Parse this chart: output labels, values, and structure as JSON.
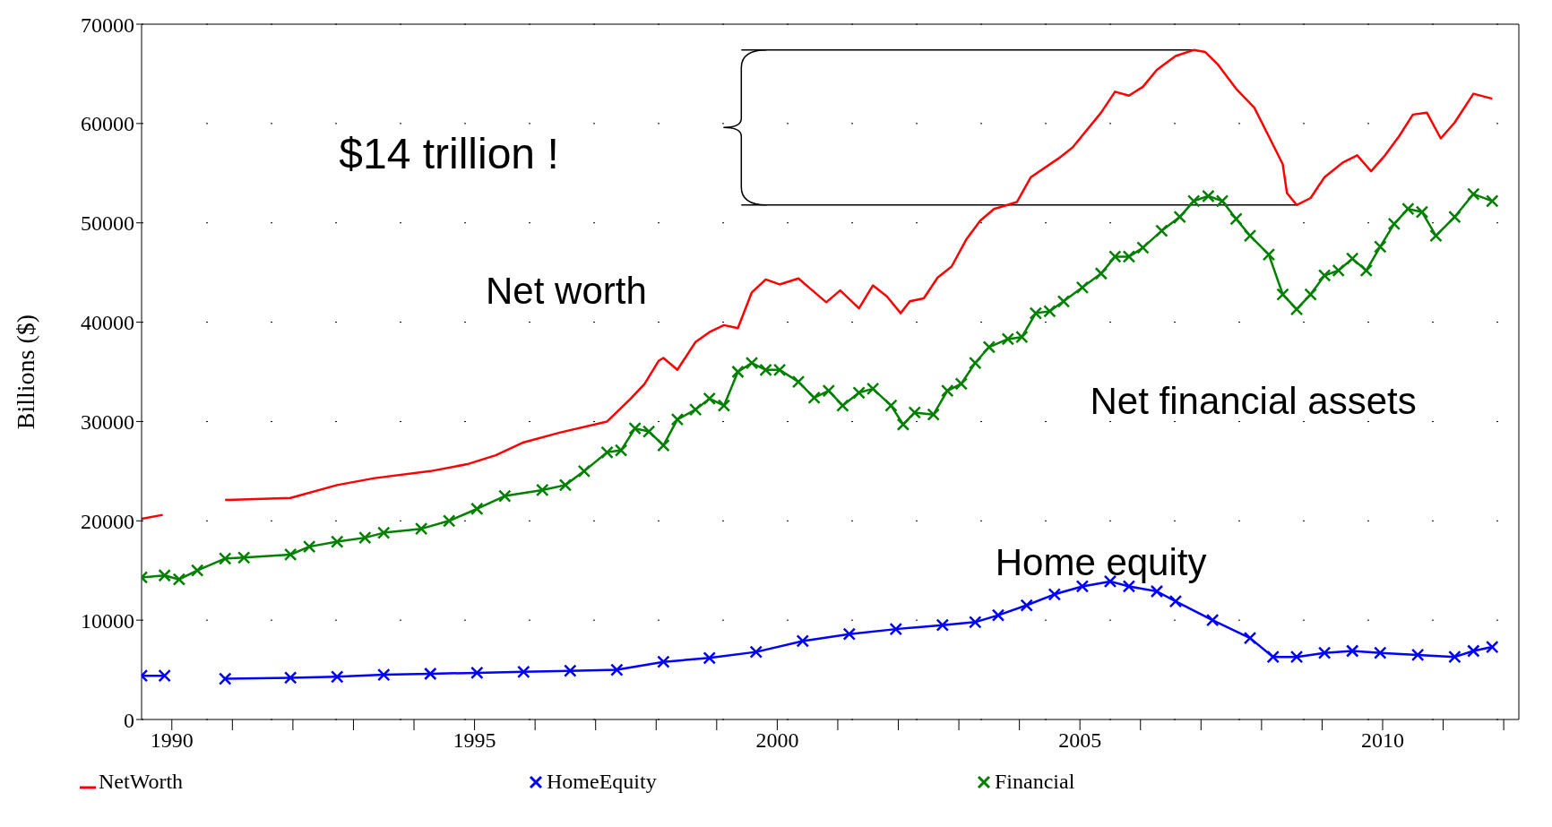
{
  "chart_data": {
    "type": "line",
    "ylabel": "Billions ($)",
    "xlim": [
      1989.5,
      2012.25
    ],
    "xticks": [
      1990,
      {
        "value": 1991,
        "label": null
      },
      {
        "value": 1992,
        "label": null
      },
      {
        "value": 1993,
        "label": null
      },
      {
        "value": 1994,
        "label": null
      },
      1995,
      {
        "value": 1996,
        "label": null
      },
      {
        "value": 1997,
        "label": null
      },
      {
        "value": 1998,
        "label": null
      },
      {
        "value": 1999,
        "label": null
      },
      2000,
      {
        "value": 2001,
        "label": null
      },
      {
        "value": 2002,
        "label": null
      },
      {
        "value": 2003,
        "label": null
      },
      {
        "value": 2004,
        "label": null
      },
      2005,
      {
        "value": 2006,
        "label": null
      },
      {
        "value": 2007,
        "label": null
      },
      {
        "value": 2008,
        "label": null
      },
      {
        "value": 2009,
        "label": null
      },
      2010,
      {
        "value": 2011,
        "label": null
      },
      {
        "value": 2012,
        "label": null
      }
    ],
    "ylim": [
      0,
      70000
    ],
    "yticks": [
      0,
      10000,
      20000,
      30000,
      40000,
      50000,
      60000,
      70000
    ],
    "grid": "y",
    "legend": "bottom",
    "series": [
      {
        "name": "NetWorth",
        "color": "#ff0000",
        "marker": "none",
        "x": [
          1989.5,
          1989.85,
          1990.4,
          1990.88,
          1991.96,
          1992.73,
          1993.35,
          1994.27,
          1994.88,
          1995.35,
          1995.81,
          1996.42,
          1997.19,
          1997.58,
          1997.81,
          1998.04,
          1998.12,
          1998.35,
          1998.65,
          1998.88,
          1999.12,
          1999.35,
          1999.58,
          1999.81,
          2000.04,
          2000.35,
          2000.58,
          2000.81,
          2001.04,
          2001.35,
          2001.58,
          2001.81,
          2002.04,
          2002.19,
          2002.42,
          2002.65,
          2002.88,
          2003.12,
          2003.35,
          2003.58,
          2003.96,
          2004.19,
          2004.65,
          2004.88,
          2005.35,
          2005.58,
          2005.81,
          2006.04,
          2006.27,
          2006.58,
          2006.88,
          2007.07,
          2007.27,
          2007.58,
          2007.88,
          2008.12,
          2008.35,
          2008.42,
          2008.58,
          2008.81,
          2009.04,
          2009.35,
          2009.58,
          2009.81,
          2010.04,
          2010.27,
          2010.5,
          2010.73,
          2010.96,
          2011.19,
          2011.5,
          2011.81
        ],
        "values": [
          20200,
          20600,
          null,
          22100,
          22300,
          23600,
          24300,
          25000,
          25700,
          26600,
          27900,
          28900,
          30000,
          32300,
          33800,
          36100,
          36400,
          35200,
          38000,
          39000,
          39700,
          39400,
          43000,
          44300,
          43800,
          44400,
          43200,
          42000,
          43200,
          41400,
          43700,
          42600,
          40900,
          42100,
          42400,
          44500,
          45600,
          48300,
          50200,
          51400,
          52100,
          54600,
          56500,
          57600,
          61100,
          63200,
          62800,
          63700,
          65400,
          66800,
          67400,
          67200,
          66000,
          63500,
          61600,
          58700,
          55900,
          53000,
          51800,
          52500,
          54600,
          56100,
          56800,
          55200,
          56800,
          58700,
          60900,
          61100,
          58500,
          60100,
          63000,
          62500
        ]
      },
      {
        "name": "HomeEquity",
        "color": "#0000ff",
        "marker": "cross",
        "x": [
          1989.5,
          1989.88,
          1990.4,
          1990.88,
          1991.96,
          1992.73,
          1993.5,
          1994.27,
          1995.04,
          1995.81,
          1996.58,
          1997.35,
          1998.12,
          1998.88,
          1999.65,
          2000.42,
          2001.19,
          2001.96,
          2002.73,
          2003.27,
          2003.65,
          2004.12,
          2004.58,
          2005.04,
          2005.5,
          2005.81,
          2006.27,
          2006.58,
          2007.19,
          2007.81,
          2008.19,
          2008.58,
          2009.04,
          2009.5,
          2009.96,
          2010.58,
          2011.19,
          2011.5,
          2011.81
        ],
        "values": [
          4400,
          4400,
          null,
          4100,
          4200,
          4300,
          4500,
          4600,
          4700,
          4800,
          4900,
          5000,
          5800,
          6200,
          6800,
          7900,
          8600,
          9100,
          9500,
          9800,
          10500,
          11500,
          12600,
          13400,
          13900,
          13400,
          12900,
          11900,
          10000,
          8200,
          6300,
          6300,
          6700,
          6900,
          6700,
          6500,
          6300,
          6900,
          7300
        ]
      },
      {
        "name": "Financial",
        "color": "#008000",
        "marker": "cross",
        "x": [
          1989.5,
          1989.88,
          1990.12,
          1990.42,
          1990.88,
          1991.19,
          1991.96,
          1992.27,
          1992.73,
          1993.19,
          1993.5,
          1994.12,
          1994.58,
          1995.04,
          1995.5,
          1996.12,
          1996.5,
          1996.81,
          1997.19,
          1997.42,
          1997.65,
          1997.88,
          1998.12,
          1998.35,
          1998.65,
          1998.88,
          1999.12,
          1999.35,
          1999.58,
          1999.81,
          2000.04,
          2000.35,
          2000.61,
          2000.85,
          2001.08,
          2001.35,
          2001.58,
          2001.88,
          2002.08,
          2002.27,
          2002.58,
          2002.81,
          2003.04,
          2003.27,
          2003.5,
          2003.81,
          2004.04,
          2004.27,
          2004.5,
          2004.73,
          2005.04,
          2005.35,
          2005.58,
          2005.81,
          2006.04,
          2006.35,
          2006.65,
          2006.88,
          2007.12,
          2007.35,
          2007.58,
          2007.81,
          2008.12,
          2008.35,
          2008.58,
          2008.81,
          2009.04,
          2009.27,
          2009.5,
          2009.73,
          2009.96,
          2010.19,
          2010.42,
          2010.65,
          2010.88,
          2011.19,
          2011.5,
          2011.81
        ],
        "values": [
          14300,
          14500,
          14100,
          15000,
          16200,
          16300,
          16600,
          17400,
          17900,
          18300,
          18800,
          19200,
          20000,
          21200,
          22500,
          23100,
          23600,
          25000,
          26900,
          27100,
          29300,
          29000,
          27600,
          30200,
          31200,
          32300,
          31600,
          35000,
          35900,
          35200,
          35200,
          34000,
          32400,
          33100,
          31600,
          32900,
          33300,
          31600,
          29700,
          30900,
          30700,
          33100,
          33800,
          35900,
          37500,
          38300,
          38500,
          40900,
          41100,
          42100,
          43500,
          44900,
          46600,
          46600,
          47500,
          49200,
          50600,
          52200,
          52700,
          52200,
          50400,
          48700,
          46800,
          42800,
          41300,
          42800,
          44700,
          45200,
          46400,
          45200,
          47600,
          49900,
          51400,
          51100,
          48700,
          50600,
          52900,
          52200
        ]
      }
    ],
    "ref_lines": [
      {
        "axis": "y",
        "value": 67400
      },
      {
        "axis": "y",
        "value": 51800
      }
    ],
    "annotations": [
      "$14 trillion !",
      "Net worth",
      "Net financial assets",
      "Home equity"
    ]
  }
}
